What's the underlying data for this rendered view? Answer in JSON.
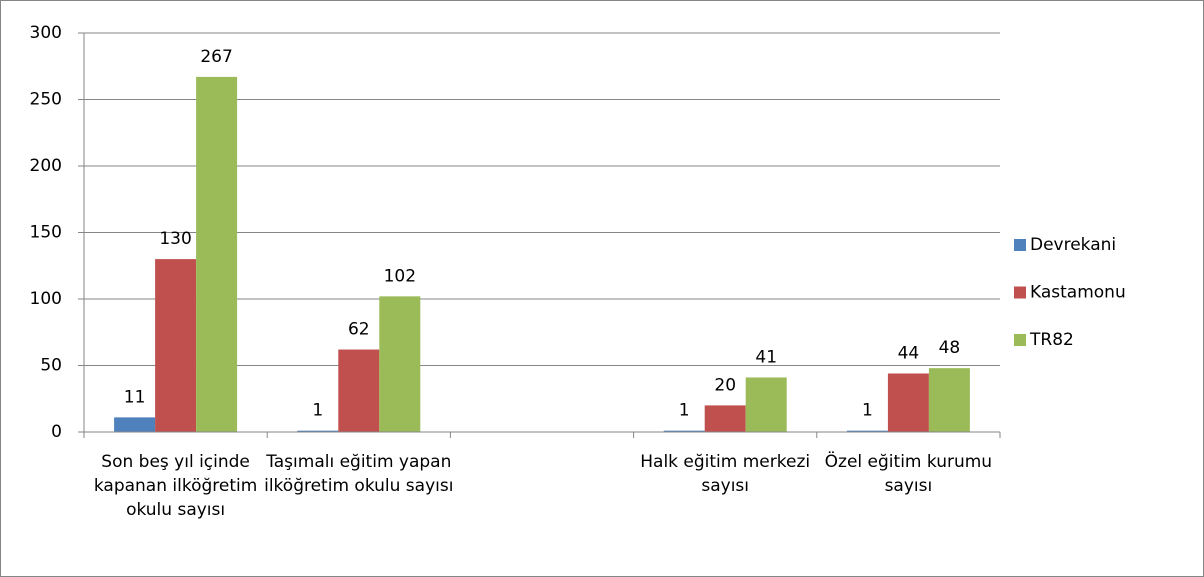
{
  "chart_data": {
    "type": "bar",
    "categories": [
      "Son beş yıl içinde kapanan ilköğretim okulu sayısı",
      "Taşımalı eğitim yapan ilköğretim okulu sayısı",
      null,
      "Halk eğitim merkezi sayısı",
      "Özel eğitim kurumu sayısı"
    ],
    "series": [
      {
        "name": "Devrekani",
        "color": "#4f81bd",
        "values": [
          11,
          1,
          null,
          1,
          1
        ]
      },
      {
        "name": "Kastamonu",
        "color": "#c0504d",
        "values": [
          130,
          62,
          null,
          20,
          44
        ]
      },
      {
        "name": "TR82",
        "color": "#9bbb59",
        "values": [
          267,
          102,
          null,
          41,
          48
        ]
      }
    ],
    "ylim": [
      0,
      300
    ],
    "yticks": [
      0,
      50,
      100,
      150,
      200,
      250,
      300
    ],
    "grid": true,
    "legend": "right"
  }
}
